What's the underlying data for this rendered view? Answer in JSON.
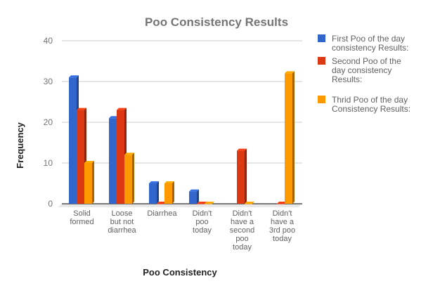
{
  "chart_data": {
    "type": "bar",
    "style": "3d-column",
    "title": "Poo Consistency Results",
    "xlabel": "Poo Consistency",
    "ylabel": "Frequency",
    "ylim": [
      0,
      40
    ],
    "yticks": [
      0,
      10,
      20,
      30,
      40
    ],
    "grid": true,
    "legend_position": "right",
    "categories": [
      [
        "Solid",
        "formed"
      ],
      [
        "Loose",
        "but not",
        "diarrhea"
      ],
      [
        "Diarrhea"
      ],
      [
        "Didn't",
        "poo",
        "today"
      ],
      [
        "Didn't",
        "have a",
        "second",
        "poo",
        "today"
      ],
      [
        "Didn't",
        "have a",
        "3rd poo",
        "today"
      ]
    ],
    "series": [
      {
        "name": "First Poo of the day consistency Results:",
        "legend_lines": [
          "First Poo of the day",
          "consistency Results:"
        ],
        "color": "#3366cc",
        "values": [
          31,
          21,
          5,
          3,
          null,
          null
        ]
      },
      {
        "name": "Second Poo of the day consistency Results:",
        "legend_lines": [
          "Second Poo of the",
          "day consistency",
          "Results:"
        ],
        "color": "#dc3912",
        "values": [
          23,
          23,
          0,
          0,
          13,
          0
        ]
      },
      {
        "name": "Thrid Poo of the day Consistency Results:",
        "legend_lines": [
          "Thrid Poo of the day",
          "Consistency Results:"
        ],
        "color": "#ff9900",
        "values": [
          10,
          12,
          5,
          0,
          0,
          32
        ]
      }
    ]
  }
}
